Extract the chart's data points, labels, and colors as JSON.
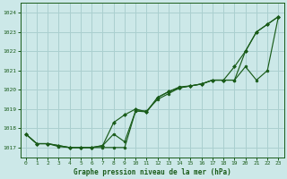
{
  "title": "Graphe pression niveau de la mer (hPa)",
  "bg_color": "#cce8e8",
  "grid_color": "#aacfcf",
  "line_color": "#1a5c1a",
  "x_values": [
    0,
    1,
    2,
    3,
    4,
    5,
    6,
    7,
    8,
    9,
    10,
    11,
    12,
    13,
    14,
    15,
    16,
    17,
    18,
    19,
    20,
    21,
    22,
    23
  ],
  "line1": [
    1017.7,
    1017.2,
    1017.2,
    1017.1,
    1017.0,
    1017.0,
    1017.0,
    1017.0,
    1017.0,
    1017.0,
    1018.9,
    1018.9,
    1019.5,
    1019.8,
    1020.1,
    1020.2,
    1020.3,
    1020.5,
    1020.5,
    1020.5,
    1022.0,
    1023.0,
    1023.4,
    1023.8
  ],
  "line2": [
    1017.7,
    1017.2,
    1017.2,
    1017.1,
    1017.0,
    1017.0,
    1017.0,
    1017.1,
    1018.3,
    1018.7,
    1019.0,
    1018.85,
    1019.6,
    1019.9,
    1020.1,
    1020.2,
    1020.3,
    1020.5,
    1020.5,
    1021.2,
    1022.0,
    1023.0,
    1023.4,
    1023.8
  ],
  "line3": [
    1017.7,
    1017.2,
    1017.2,
    1017.05,
    1017.0,
    1017.0,
    1017.0,
    1017.1,
    1017.7,
    1017.3,
    1018.9,
    1018.85,
    1019.6,
    1019.9,
    1020.15,
    1020.2,
    1020.3,
    1020.5,
    1020.5,
    1020.5,
    1021.2,
    1020.5,
    1021.0,
    1023.8
  ],
  "ylim": [
    1016.5,
    1024.5
  ],
  "yticks": [
    1017,
    1018,
    1019,
    1020,
    1021,
    1022,
    1023,
    1024
  ],
  "xlim": [
    -0.5,
    23.5
  ],
  "xticks": [
    0,
    1,
    2,
    3,
    4,
    5,
    6,
    7,
    8,
    9,
    10,
    11,
    12,
    13,
    14,
    15,
    16,
    17,
    18,
    19,
    20,
    21,
    22,
    23
  ]
}
